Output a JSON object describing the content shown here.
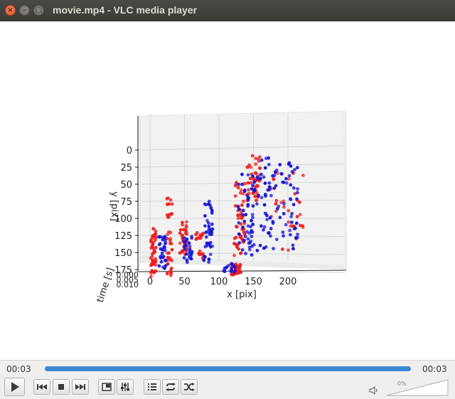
{
  "window": {
    "title": "movie.mp4 - VLC media player",
    "close_glyph": "×",
    "minimize_glyph": "–",
    "maximize_glyph": "□"
  },
  "plot": {
    "y_label": "y [pix]",
    "x_label": "x [pix]",
    "z_label": "time [s]",
    "y_ticks": [
      "0",
      "25",
      "50",
      "75",
      "100",
      "125",
      "150",
      "175"
    ],
    "x_ticks": [
      "0",
      "50",
      "100",
      "150",
      "200"
    ],
    "z_ticks": [
      "0.000",
      "0.005",
      "0.010"
    ],
    "series_colors": {
      "red": "#ee1c1c",
      "blue": "#1414d8"
    }
  },
  "chart_data": {
    "type": "scatter",
    "xlabel": "x [pix]",
    "ylabel": "y [pix]",
    "zlabel": "time [s]",
    "xlim": [
      0,
      230
    ],
    "ylim": [
      0,
      180
    ],
    "series": [
      {
        "color": "#ee1c1c",
        "clusters": [
          {
            "cx": 5,
            "cy": 150,
            "rx": 4,
            "ry": 35,
            "n": 45
          },
          {
            "cx": 28,
            "cy": 130,
            "rx": 4,
            "ry": 60,
            "n": 40
          },
          {
            "cx": 48,
            "cy": 130,
            "rx": 6,
            "ry": 25,
            "n": 30
          },
          {
            "cx": 72,
            "cy": 140,
            "rx": 6,
            "ry": 20,
            "n": 20
          },
          {
            "cx": 130,
            "cy": 100,
            "rx": 8,
            "ry": 55,
            "n": 50
          },
          {
            "cx": 150,
            "cy": 40,
            "rx": 10,
            "ry": 35,
            "n": 45
          },
          {
            "cx": 125,
            "cy": 175,
            "rx": 7,
            "ry": 8,
            "n": 35
          },
          {
            "cx": 200,
            "cy": 90,
            "rx": 25,
            "ry": 60,
            "n": 30
          }
        ]
      },
      {
        "color": "#1414d8",
        "clusters": [
          {
            "cx": 18,
            "cy": 150,
            "rx": 5,
            "ry": 25,
            "n": 30
          },
          {
            "cx": 55,
            "cy": 145,
            "rx": 6,
            "ry": 20,
            "n": 25
          },
          {
            "cx": 85,
            "cy": 120,
            "rx": 7,
            "ry": 45,
            "n": 40
          },
          {
            "cx": 140,
            "cy": 95,
            "rx": 12,
            "ry": 60,
            "n": 55
          },
          {
            "cx": 185,
            "cy": 80,
            "rx": 30,
            "ry": 70,
            "n": 90
          },
          {
            "cx": 115,
            "cy": 172,
            "rx": 10,
            "ry": 8,
            "n": 15
          }
        ]
      }
    ]
  },
  "player": {
    "elapsed": "00:03",
    "total": "00:03",
    "progress": 1.0,
    "volume_label": "0%",
    "volume_level": 0.0
  },
  "buttons": [
    {
      "name": "play-icon"
    },
    {
      "name": "previous-icon"
    },
    {
      "name": "stop-icon"
    },
    {
      "name": "next-icon"
    },
    {
      "name": "fullscreen-icon"
    },
    {
      "name": "extended-settings-icon"
    },
    {
      "name": "playlist-icon"
    },
    {
      "name": "loop-icon"
    },
    {
      "name": "shuffle-icon"
    }
  ]
}
